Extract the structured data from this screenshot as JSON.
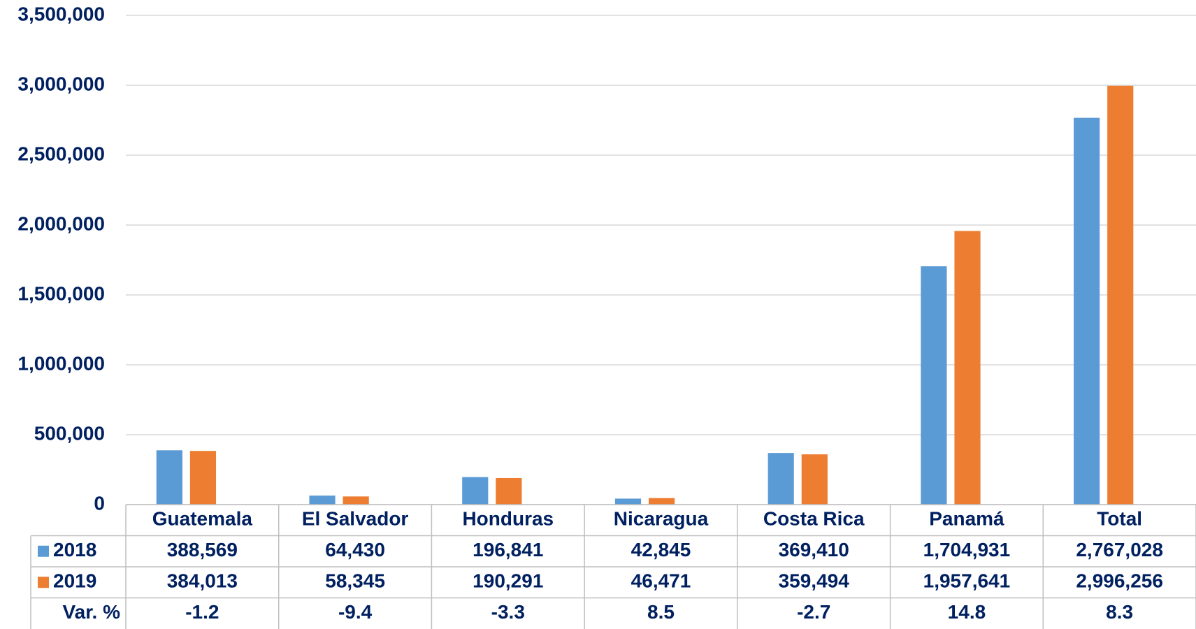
{
  "chart_data": {
    "type": "bar",
    "categories": [
      "Guatemala",
      "El Salvador",
      "Honduras",
      "Nicaragua",
      "Costa Rica",
      "Panamá",
      "Total"
    ],
    "series": [
      {
        "name": "2018",
        "color": "#5b9bd5",
        "values": [
          388569,
          64430,
          196841,
          42845,
          369410,
          1704931,
          2767028
        ],
        "value_labels": [
          "388,569",
          "64,430",
          "196,841",
          "42,845",
          "369,410",
          "1,704,931",
          "2,767,028"
        ]
      },
      {
        "name": "2019",
        "color": "#ed7d31",
        "values": [
          384013,
          58345,
          190291,
          46471,
          359494,
          1957641,
          2996256
        ],
        "value_labels": [
          "384,013",
          "58,345",
          "190,291",
          "46,471",
          "359,494",
          "1,957,641",
          "2,996,256"
        ]
      }
    ],
    "variation": {
      "name": "Var. %",
      "values": [
        -1.2,
        -9.4,
        -3.3,
        8.5,
        -2.7,
        14.8,
        8.3
      ]
    },
    "ylim": [
      0,
      3500000
    ],
    "yticks": [
      0,
      {
        "value": 500000,
        "label": "500,000"
      },
      {
        "value": 1000000,
        "label": "1,000,000"
      },
      {
        "value": 1500000,
        "label": "1,500,000"
      },
      {
        "value": 2000000,
        "label": "2,000,000"
      },
      {
        "value": 2500000,
        "label": "2,500,000"
      },
      {
        "value": 3000000,
        "label": "3,000,000"
      },
      {
        "value": 3500000,
        "label": "3,500,000"
      }
    ],
    "grid": true
  }
}
